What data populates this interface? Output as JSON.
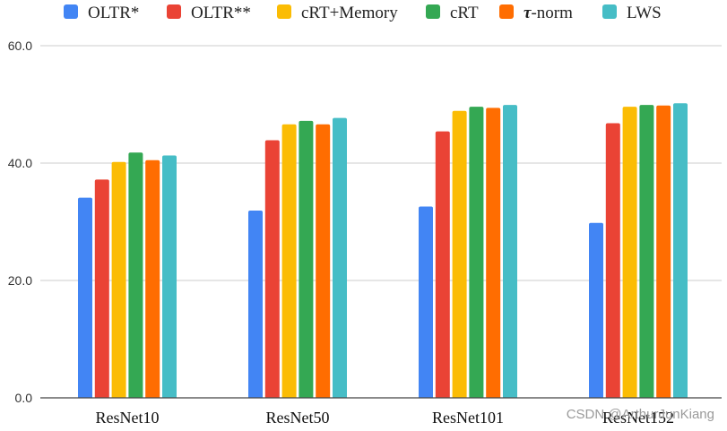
{
  "chart_data": {
    "type": "bar",
    "title": "",
    "xlabel": "",
    "ylabel": "",
    "ylim": [
      0,
      60
    ],
    "yticks": [
      "0.0",
      "20.0",
      "40.0",
      "60.0"
    ],
    "grid": true,
    "legend_position": "top",
    "categories": [
      "ResNet10",
      "ResNet50",
      "ResNet101",
      "ResNet152"
    ],
    "series": [
      {
        "name": "OLTR*",
        "color": "#4285f4",
        "values": [
          34.1,
          31.9,
          32.6,
          29.8
        ]
      },
      {
        "name": "OLTR**",
        "color": "#ea4335",
        "values": [
          37.2,
          43.9,
          45.4,
          46.8
        ]
      },
      {
        "name": "cRT+Memory",
        "color": "#fbbc04",
        "values": [
          40.2,
          46.6,
          48.9,
          49.6
        ]
      },
      {
        "name": "cRT",
        "color": "#34a853",
        "values": [
          41.8,
          47.2,
          49.6,
          49.9
        ]
      },
      {
        "name": "τ-norm",
        "color": "#ff6d01",
        "values": [
          40.5,
          46.6,
          49.4,
          49.8
        ]
      },
      {
        "name": "LWS",
        "color": "#46bdc6",
        "values": [
          41.3,
          47.7,
          49.9,
          50.2
        ]
      }
    ]
  },
  "watermark": "CSDN @ArthurJunKiang"
}
